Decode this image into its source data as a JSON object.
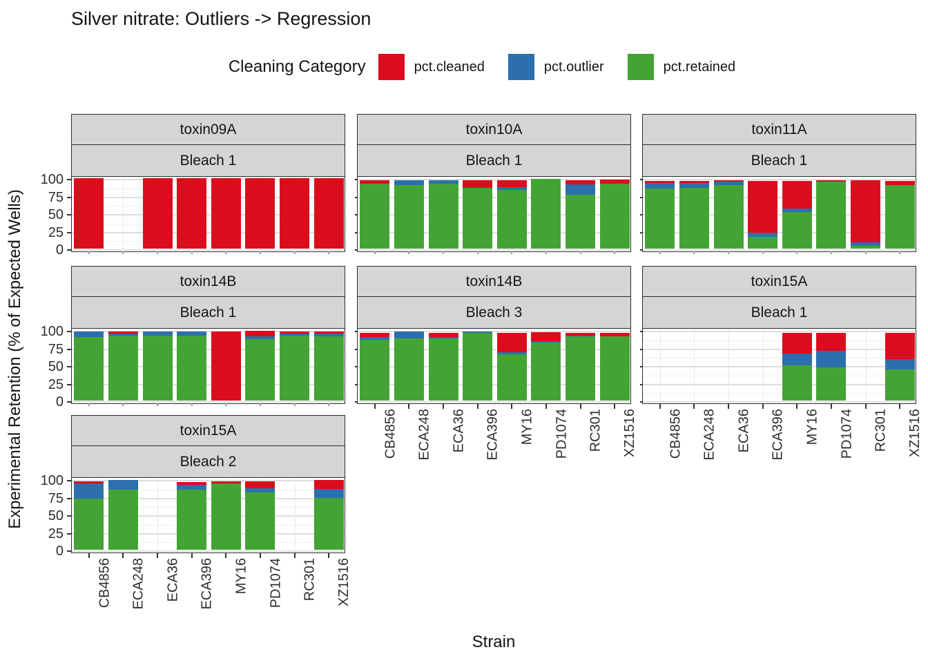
{
  "title": "Silver nitrate: Outliers -> Regression",
  "legend": {
    "title": "Cleaning Category",
    "items": [
      {
        "label": "pct.cleaned",
        "color": "#db0d1d"
      },
      {
        "label": "pct.outlier",
        "color": "#2d6fac"
      },
      {
        "label": "pct.retained",
        "color": "#43a435"
      }
    ]
  },
  "chart_data": {
    "type": "bar",
    "stacked": true,
    "title": "Silver nitrate: Outliers -> Regression",
    "legend_title": "Cleaning Category",
    "legend_position": "top",
    "xlabel": "Strain",
    "ylabel": "Experimental Retention (% of Expected Wells)",
    "ylim": [
      0,
      100
    ],
    "yticks": [
      0,
      25,
      50,
      75,
      100
    ],
    "grid": "horizontal major+minor, vertical at categories",
    "categories": [
      "CB4856",
      "ECA248",
      "ECA36",
      "ECA396",
      "MY16",
      "PD1074",
      "RC301",
      "XZ1516"
    ],
    "series": [
      {
        "name": "pct.cleaned",
        "color": "#db0d1d"
      },
      {
        "name": "pct.outlier",
        "color": "#2d6fac"
      },
      {
        "name": "pct.retained",
        "color": "#43a435"
      }
    ],
    "values_format": "per category: [pct.cleaned, pct.outlier, pct.retained]; null = no bar; stacked bottom-to-top as retained, outlier, cleaned",
    "facets": [
      {
        "toxin": "toxin09A",
        "bleach": "Bleach 1",
        "row": 0,
        "col": 0,
        "x_labels": false,
        "values": [
          [
            100,
            0,
            0
          ],
          null,
          [
            100,
            0,
            0
          ],
          [
            100,
            0,
            0
          ],
          [
            100,
            0,
            0
          ],
          [
            100,
            0,
            0
          ],
          [
            100,
            0,
            0
          ],
          [
            100,
            0,
            0
          ]
        ]
      },
      {
        "toxin": "toxin10A",
        "bleach": "Bleach 1",
        "row": 0,
        "col": 1,
        "x_labels": false,
        "values": [
          [
            5,
            0,
            92
          ],
          [
            0,
            7,
            90
          ],
          [
            0,
            5,
            92
          ],
          [
            11,
            0,
            86
          ],
          [
            10,
            4,
            83
          ],
          [
            0,
            0,
            99
          ],
          [
            6,
            15,
            76
          ],
          [
            6,
            0,
            92
          ]
        ]
      },
      {
        "toxin": "toxin11A",
        "bleach": "Bleach 1",
        "row": 0,
        "col": 2,
        "x_labels": false,
        "values": [
          [
            3,
            8,
            85
          ],
          [
            3,
            7,
            86
          ],
          [
            2,
            5,
            90
          ],
          [
            73,
            6,
            17
          ],
          [
            39,
            5,
            52
          ],
          [
            2,
            0,
            95
          ],
          [
            88,
            5,
            4
          ],
          [
            6,
            0,
            90
          ]
        ]
      },
      {
        "toxin": "toxin14B",
        "bleach": "Bleach 1",
        "row": 1,
        "col": 0,
        "x_labels": false,
        "values": [
          [
            0,
            8,
            90
          ],
          [
            3,
            3,
            92
          ],
          [
            0,
            6,
            92
          ],
          [
            0,
            6,
            92
          ],
          [
            98,
            0,
            0
          ],
          [
            8,
            4,
            87
          ],
          [
            3,
            3,
            92
          ],
          [
            3,
            4,
            91
          ]
        ]
      },
      {
        "toxin": "toxin14B",
        "bleach": "Bleach 3",
        "row": 1,
        "col": 1,
        "x_labels": true,
        "values": [
          [
            6,
            4,
            86
          ],
          [
            0,
            10,
            88
          ],
          [
            6,
            2,
            88
          ],
          [
            0,
            2,
            96
          ],
          [
            27,
            3,
            66
          ],
          [
            13,
            2,
            82
          ],
          [
            4,
            1,
            91
          ],
          [
            5,
            0,
            91
          ]
        ]
      },
      {
        "toxin": "toxin15A",
        "bleach": "Bleach 1",
        "row": 1,
        "col": 2,
        "x_labels": true,
        "values": [
          null,
          null,
          null,
          null,
          [
            29,
            17,
            50
          ],
          [
            25,
            24,
            47
          ],
          null,
          [
            37,
            15,
            44
          ]
        ]
      },
      {
        "toxin": "toxin15A",
        "bleach": "Bleach 2",
        "row": 2,
        "col": 0,
        "x_labels": true,
        "values": [
          [
            3,
            21,
            73
          ],
          [
            0,
            14,
            85
          ],
          null,
          [
            4,
            7,
            85
          ],
          [
            3,
            0,
            94
          ],
          [
            10,
            6,
            81
          ],
          null,
          [
            13,
            12,
            74
          ]
        ]
      }
    ]
  }
}
